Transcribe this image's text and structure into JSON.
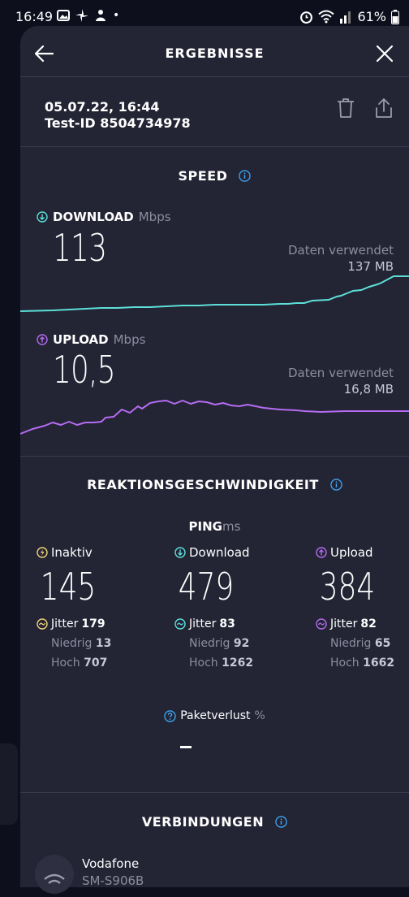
{
  "status_bar": {
    "time": "16:49",
    "battery": "61%",
    "dot": "•"
  },
  "header": {
    "title": "ERGEBNISSE"
  },
  "meta": {
    "date": "05.07.22, 16:44",
    "test_id": "Test-ID 8504734978"
  },
  "speed": {
    "title": "SPEED",
    "download": {
      "label": "DOWNLOAD",
      "unit": "Mbps",
      "value": "113",
      "data_used_label": "Daten verwendet",
      "data_used_value": "137 MB"
    },
    "upload": {
      "label": "UPLOAD",
      "unit": "Mbps",
      "value": "10,5",
      "data_used_label": "Daten verwendet",
      "data_used_value": "16,8 MB"
    }
  },
  "reaction": {
    "title": "REAKTIONSGESCHWINDIGKEIT",
    "ping_label": "PING",
    "ping_unit": "ms",
    "columns": [
      {
        "label": "Inaktiv",
        "value": "145",
        "jitter_label": "Jitter",
        "jitter": "179",
        "low_label": "Niedrig",
        "low": "13",
        "high_label": "Hoch",
        "high": "707"
      },
      {
        "label": "Download",
        "value": "479",
        "jitter_label": "Jitter",
        "jitter": "83",
        "low_label": "Niedrig",
        "low": "92",
        "high_label": "Hoch",
        "high": "1262"
      },
      {
        "label": "Upload",
        "value": "384",
        "jitter_label": "Jitter",
        "jitter": "82",
        "low_label": "Niedrig",
        "low": "65",
        "high_label": "Hoch",
        "high": "1662"
      }
    ],
    "packet_loss_label": "Paketverlust",
    "packet_loss_unit": "%"
  },
  "connections": {
    "title": "VERBINDUNGEN",
    "provider": "Vodafone",
    "provider_sub": "SM-S906B"
  },
  "colors": {
    "download": "#5ce0d8",
    "upload": "#b56cf2",
    "idle": "#f2d47a",
    "info": "#3da6f5",
    "background": "#232434"
  }
}
